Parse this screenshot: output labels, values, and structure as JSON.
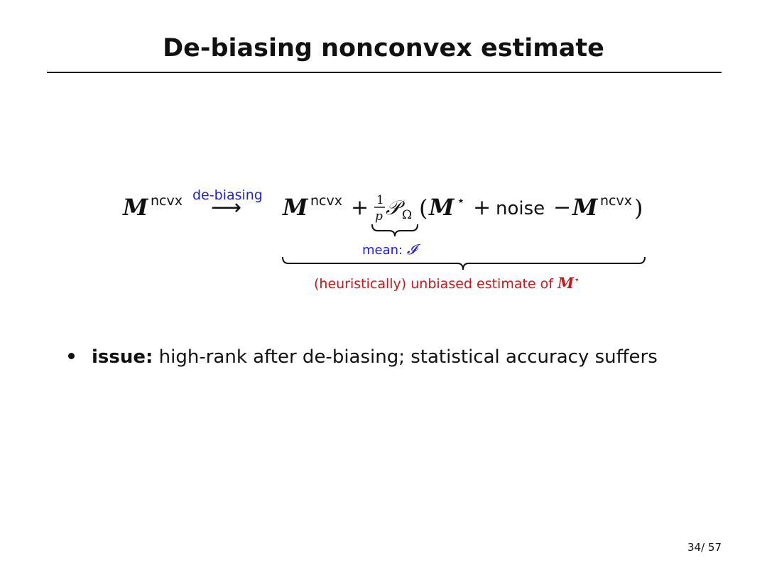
{
  "slide": {
    "title": "De-biasing nonconvex estimate",
    "page_current": "34",
    "page_total": "57"
  },
  "equation": {
    "lhs_symbol": "M",
    "lhs_superscript": "ncvx",
    "arrow_label": "de-biasing",
    "arrow": "⟶",
    "rhs_m_symbol": "M",
    "rhs_m_superscript": "ncvx",
    "plus_1": "+",
    "frac_num": "1",
    "frac_den": "p",
    "proj_symbol": "𝒫",
    "proj_subscript": "Ω",
    "open_paren": "(",
    "mstar_symbol": "M",
    "mstar_superscript": "⋆",
    "plus_2": "+",
    "noise": "noise",
    "minus": "−",
    "m2_symbol": "M",
    "m2_superscript": "ncvx",
    "close_paren": ")",
    "inner_brace_label": "mean: ",
    "inner_brace_symbol": "𝓘",
    "outer_brace_label": "(heuristically) unbiased estimate of ",
    "outer_brace_symbol": "M",
    "outer_brace_superscript": "⋆",
    "colors": {
      "blue": "#1f1fd6",
      "red": "#c41a1a",
      "black": "#111111"
    }
  },
  "bullets": [
    {
      "keyword": "issue:",
      "text": "high-rank after de-biasing; statistical accuracy suffers"
    }
  ]
}
